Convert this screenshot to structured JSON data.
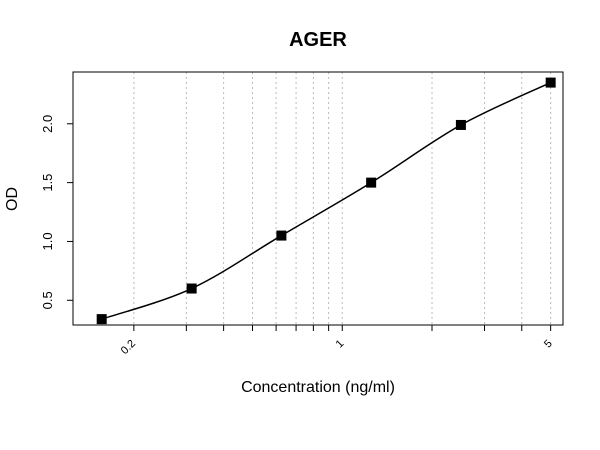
{
  "chart_data": {
    "type": "scatter",
    "title": "AGER",
    "xlabel": "Concentration (ng/ml)",
    "ylabel": "OD",
    "x_scale": "log",
    "xlim": [
      0.125,
      5.5
    ],
    "ylim": [
      0.29,
      2.44
    ],
    "x_tick_labels": [
      {
        "value": 0.2,
        "label": "0.2"
      },
      {
        "value": 1,
        "label": "1"
      },
      {
        "value": 5,
        "label": "5"
      }
    ],
    "x_minor_ticks": [
      0.3,
      0.4,
      0.5,
      0.6,
      0.7,
      0.8,
      0.9,
      2,
      3,
      4
    ],
    "y_tick_labels": [
      {
        "value": 0.5,
        "label": "0.5"
      },
      {
        "value": 1.0,
        "label": "1.0"
      },
      {
        "value": 1.5,
        "label": "1.5"
      },
      {
        "value": 2.0,
        "label": "2.0"
      }
    ],
    "grid": "vertical-dotted",
    "series": [
      {
        "x": [
          0.156,
          0.3125,
          0.625,
          1.25,
          2.5,
          5
        ],
        "values": [
          0.34,
          0.6,
          1.05,
          1.5,
          1.99,
          2.35
        ],
        "marker": "square",
        "fit_curve": true
      }
    ],
    "colors": {
      "points": "#000000",
      "curve": "#000000",
      "grid": "#bbbbbb"
    }
  }
}
